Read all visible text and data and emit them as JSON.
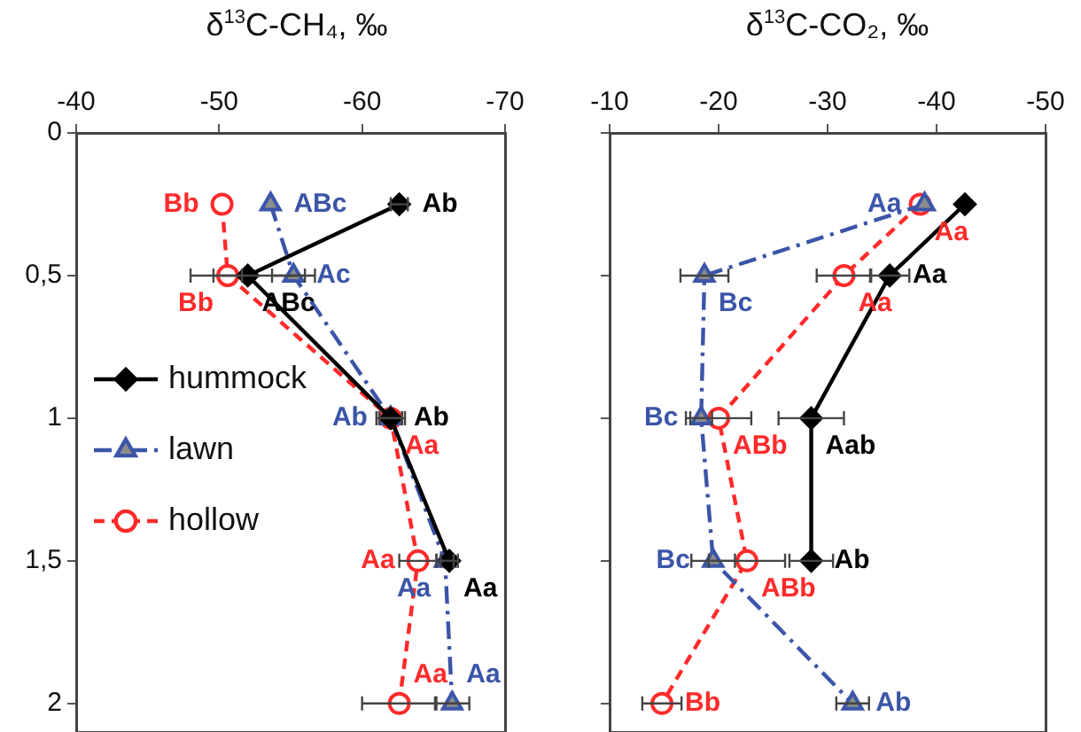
{
  "chart_data": [
    {
      "type": "line",
      "title": "δ$^{13}$C-CH₄, ‰",
      "xlim": [
        -40,
        -70
      ],
      "xticks": [
        -40,
        -50,
        -60,
        -70
      ],
      "ylim": [
        2.1,
        0
      ],
      "yticks": [
        0,
        {
          "value": 0.5,
          "label": "0,5"
        },
        1,
        {
          "value": 1.5,
          "label": "1,5"
        },
        2
      ],
      "grid": false,
      "legend": "left",
      "series": [
        {
          "name": "hummock",
          "color": "#000000",
          "marker": "diamond",
          "line_style": "solid",
          "x": [
            -62.6,
            -52.0,
            -62.0,
            -66.1
          ],
          "values": [
            0.25,
            0.5,
            1,
            1.5
          ],
          "xerrors": [
            0.6,
            4,
            0.8,
            0.6
          ],
          "value_labels": [
            "Ab",
            "ABc",
            "Ab",
            "Aa"
          ]
        },
        {
          "name": "lawn",
          "color": "#3b55a8",
          "marker": "triangle",
          "line_style": "dashdot",
          "x": [
            -53.6,
            -55.2,
            -62.0,
            -65.8,
            -66.3
          ],
          "values": [
            0.25,
            0.5,
            1,
            1.5,
            2
          ],
          "xerrors": [
            null,
            1.5,
            0.8,
            0.6,
            1.2
          ],
          "value_labels": [
            "ABc",
            "Ac",
            "Ab",
            "Aa",
            "Aa"
          ]
        },
        {
          "name": "hollow",
          "color": "#ff2a2a",
          "marker": "circle",
          "line_style": "dashed",
          "x": [
            -50.2,
            -50.6,
            -62.0,
            -63.9,
            -62.6
          ],
          "values": [
            0.25,
            0.5,
            1,
            1.5,
            2
          ],
          "xerrors": [
            null,
            1,
            1,
            1.3,
            2.6
          ],
          "value_labels": [
            "Bb",
            "Bb",
            "Aa",
            "Aa",
            "Aa"
          ]
        }
      ]
    },
    {
      "type": "line",
      "title": "δ$^{13}$C-CO₂, ‰",
      "xlim": [
        -10,
        -50
      ],
      "xticks": [
        -10,
        -20,
        -30,
        -40,
        -50
      ],
      "ylim": [
        2.1,
        0
      ],
      "yticks": [
        0,
        0.5,
        1,
        1.5,
        2
      ],
      "grid": false,
      "tick_labels": "x",
      "series": [
        {
          "color": "#000000",
          "marker": "diamond",
          "line_style": "solid",
          "x": [
            -42.6,
            -35.7,
            -28.5,
            -28.5
          ],
          "values": [
            0.25,
            0.5,
            1,
            1.5
          ],
          "xerrors": [
            null,
            1.8,
            3,
            2
          ],
          "value_labels": [
            null,
            "Aa",
            "Aab",
            "Ab"
          ]
        },
        {
          "color": "#3b55a8",
          "marker": "triangle",
          "line_style": "dashdot",
          "x": [
            -38.9,
            -18.7,
            -18.4,
            -19.5,
            -32.3
          ],
          "values": [
            0.25,
            0.5,
            1,
            1.5,
            2
          ],
          "xerrors": [
            null,
            2.2,
            1,
            2,
            1.5
          ],
          "value_labels": [
            "Aa",
            "Bc",
            "Bc",
            "Bc",
            "Ab"
          ]
        },
        {
          "color": "#ff2a2a",
          "marker": "circle",
          "line_style": "dashed",
          "x": [
            -38.5,
            -31.5,
            -20.0,
            -22.6,
            -14.8
          ],
          "values": [
            0.25,
            0.5,
            1,
            1.5,
            2
          ],
          "xerrors": [
            null,
            2.5,
            3,
            3.5,
            1.8
          ],
          "value_labels": [
            "Aa",
            "Aa",
            "ABb",
            "ABb",
            "Bb"
          ]
        }
      ]
    }
  ]
}
